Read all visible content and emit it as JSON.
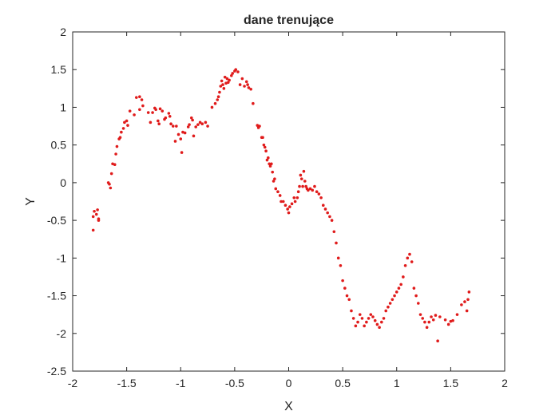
{
  "chart_data": {
    "type": "scatter",
    "title": "dane trenujące",
    "xlabel": "X",
    "ylabel": "Y",
    "xlim": [
      -2,
      2
    ],
    "ylim": [
      -2.5,
      2
    ],
    "xticks": [
      "-2",
      "-1.5",
      "-1",
      "-0.5",
      "0",
      "0.5",
      "1",
      "1.5",
      "2"
    ],
    "yticks": [
      "-2.5",
      "-2",
      "-1.5",
      "-1",
      "-0.5",
      "0",
      "0.5",
      "1",
      "1.5",
      "2"
    ],
    "grid": false,
    "marker_color": "#e01b1b",
    "points": [
      [
        -1.81,
        -0.63
      ],
      [
        -1.81,
        -0.45
      ],
      [
        -1.8,
        -0.38
      ],
      [
        -1.78,
        -0.42
      ],
      [
        -1.77,
        -0.36
      ],
      [
        -1.76,
        -0.5
      ],
      [
        -1.76,
        -0.48
      ],
      [
        -1.67,
        0.0
      ],
      [
        -1.66,
        -0.02
      ],
      [
        -1.65,
        -0.07
      ],
      [
        -1.64,
        0.12
      ],
      [
        -1.63,
        0.25
      ],
      [
        -1.61,
        0.24
      ],
      [
        -1.6,
        0.38
      ],
      [
        -1.59,
        0.48
      ],
      [
        -1.57,
        0.58
      ],
      [
        -1.56,
        0.6
      ],
      [
        -1.55,
        0.67
      ],
      [
        -1.53,
        0.72
      ],
      [
        -1.52,
        0.8
      ],
      [
        -1.5,
        0.82
      ],
      [
        -1.49,
        0.76
      ],
      [
        -1.47,
        0.95
      ],
      [
        -1.43,
        0.9
      ],
      [
        -1.41,
        1.13
      ],
      [
        -1.38,
        1.14
      ],
      [
        -1.38,
        0.97
      ],
      [
        -1.36,
        1.1
      ],
      [
        -1.35,
        1.02
      ],
      [
        -1.3,
        0.93
      ],
      [
        -1.28,
        0.8
      ],
      [
        -1.26,
        0.93
      ],
      [
        -1.24,
        0.99
      ],
      [
        -1.23,
        0.97
      ],
      [
        -1.21,
        0.82
      ],
      [
        -1.2,
        0.78
      ],
      [
        -1.19,
        0.98
      ],
      [
        -1.17,
        0.95
      ],
      [
        -1.15,
        0.84
      ],
      [
        -1.14,
        0.86
      ],
      [
        -1.11,
        0.92
      ],
      [
        -1.1,
        0.88
      ],
      [
        -1.09,
        0.78
      ],
      [
        -1.07,
        0.75
      ],
      [
        -1.05,
        0.55
      ],
      [
        -1.04,
        0.75
      ],
      [
        -1.02,
        0.64
      ],
      [
        -1.0,
        0.58
      ],
      [
        -0.99,
        0.4
      ],
      [
        -0.98,
        0.67
      ],
      [
        -0.96,
        0.66
      ],
      [
        -0.93,
        0.74
      ],
      [
        -0.92,
        0.77
      ],
      [
        -0.9,
        0.86
      ],
      [
        -0.89,
        0.83
      ],
      [
        -0.88,
        0.62
      ],
      [
        -0.86,
        0.74
      ],
      [
        -0.84,
        0.77
      ],
      [
        -0.82,
        0.8
      ],
      [
        -0.8,
        0.78
      ],
      [
        -0.77,
        0.8
      ],
      [
        -0.75,
        0.75
      ],
      [
        -0.71,
        1.0
      ],
      [
        -0.68,
        1.05
      ],
      [
        -0.66,
        1.1
      ],
      [
        -0.65,
        1.14
      ],
      [
        -0.64,
        1.2
      ],
      [
        -0.63,
        1.28
      ],
      [
        -0.62,
        1.35
      ],
      [
        -0.61,
        1.3
      ],
      [
        -0.6,
        1.25
      ],
      [
        -0.59,
        1.4
      ],
      [
        -0.58,
        1.32
      ],
      [
        -0.57,
        1.38
      ],
      [
        -0.56,
        1.33
      ],
      [
        -0.55,
        1.36
      ],
      [
        -0.53,
        1.42
      ],
      [
        -0.52,
        1.45
      ],
      [
        -0.5,
        1.48
      ],
      [
        -0.49,
        1.5
      ],
      [
        -0.47,
        1.47
      ],
      [
        -0.45,
        1.3
      ],
      [
        -0.43,
        1.38
      ],
      [
        -0.41,
        1.28
      ],
      [
        -0.39,
        1.34
      ],
      [
        -0.38,
        1.3
      ],
      [
        -0.37,
        1.26
      ],
      [
        -0.35,
        1.24
      ],
      [
        -0.33,
        1.05
      ],
      [
        -0.29,
        0.76
      ],
      [
        -0.28,
        0.73
      ],
      [
        -0.27,
        0.75
      ],
      [
        -0.25,
        0.6
      ],
      [
        -0.24,
        0.6
      ],
      [
        -0.23,
        0.5
      ],
      [
        -0.22,
        0.47
      ],
      [
        -0.21,
        0.42
      ],
      [
        -0.2,
        0.3
      ],
      [
        -0.19,
        0.33
      ],
      [
        -0.18,
        0.25
      ],
      [
        -0.17,
        0.22
      ],
      [
        -0.16,
        0.25
      ],
      [
        -0.15,
        0.14
      ],
      [
        -0.14,
        0.02
      ],
      [
        -0.13,
        0.05
      ],
      [
        -0.12,
        -0.08
      ],
      [
        -0.1,
        -0.12
      ],
      [
        -0.08,
        -0.17
      ],
      [
        -0.07,
        -0.25
      ],
      [
        -0.05,
        -0.25
      ],
      [
        -0.03,
        -0.3
      ],
      [
        -0.01,
        -0.35
      ],
      [
        0.0,
        -0.4
      ],
      [
        0.01,
        -0.32
      ],
      [
        0.03,
        -0.28
      ],
      [
        0.05,
        -0.2
      ],
      [
        0.06,
        -0.25
      ],
      [
        0.08,
        -0.2
      ],
      [
        0.09,
        -0.12
      ],
      [
        0.1,
        -0.05
      ],
      [
        0.11,
        0.1
      ],
      [
        0.12,
        0.05
      ],
      [
        0.13,
        -0.05
      ],
      [
        0.14,
        0.15
      ],
      [
        0.15,
        0.02
      ],
      [
        0.16,
        -0.05
      ],
      [
        0.17,
        -0.08
      ],
      [
        0.18,
        -0.1
      ],
      [
        0.2,
        -0.08
      ],
      [
        0.22,
        -0.1
      ],
      [
        0.24,
        -0.05
      ],
      [
        0.26,
        -0.12
      ],
      [
        0.28,
        -0.15
      ],
      [
        0.3,
        -0.2
      ],
      [
        0.32,
        -0.3
      ],
      [
        0.34,
        -0.35
      ],
      [
        0.36,
        -0.4
      ],
      [
        0.38,
        -0.45
      ],
      [
        0.4,
        -0.5
      ],
      [
        0.42,
        -0.65
      ],
      [
        0.44,
        -0.8
      ],
      [
        0.46,
        -1.0
      ],
      [
        0.48,
        -1.1
      ],
      [
        0.5,
        -1.3
      ],
      [
        0.52,
        -1.4
      ],
      [
        0.54,
        -1.5
      ],
      [
        0.56,
        -1.55
      ],
      [
        0.58,
        -1.7
      ],
      [
        0.6,
        -1.8
      ],
      [
        0.62,
        -1.9
      ],
      [
        0.64,
        -1.85
      ],
      [
        0.66,
        -1.75
      ],
      [
        0.68,
        -1.8
      ],
      [
        0.7,
        -1.9
      ],
      [
        0.72,
        -1.85
      ],
      [
        0.74,
        -1.8
      ],
      [
        0.76,
        -1.75
      ],
      [
        0.78,
        -1.78
      ],
      [
        0.8,
        -1.83
      ],
      [
        0.82,
        -1.88
      ],
      [
        0.84,
        -1.92
      ],
      [
        0.86,
        -1.85
      ],
      [
        0.88,
        -1.8
      ],
      [
        0.9,
        -1.7
      ],
      [
        0.92,
        -1.65
      ],
      [
        0.94,
        -1.6
      ],
      [
        0.96,
        -1.55
      ],
      [
        0.98,
        -1.5
      ],
      [
        1.0,
        -1.45
      ],
      [
        1.02,
        -1.4
      ],
      [
        1.04,
        -1.35
      ],
      [
        1.06,
        -1.25
      ],
      [
        1.08,
        -1.1
      ],
      [
        1.1,
        -1.0
      ],
      [
        1.12,
        -0.95
      ],
      [
        1.14,
        -1.05
      ],
      [
        1.16,
        -1.4
      ],
      [
        1.18,
        -1.5
      ],
      [
        1.2,
        -1.6
      ],
      [
        1.22,
        -1.75
      ],
      [
        1.24,
        -1.8
      ],
      [
        1.26,
        -1.85
      ],
      [
        1.28,
        -1.92
      ],
      [
        1.3,
        -1.85
      ],
      [
        1.32,
        -1.78
      ],
      [
        1.34,
        -1.82
      ],
      [
        1.36,
        -1.76
      ],
      [
        1.38,
        -2.1
      ],
      [
        1.4,
        -1.78
      ],
      [
        1.45,
        -1.82
      ],
      [
        1.48,
        -1.88
      ],
      [
        1.5,
        -1.84
      ],
      [
        1.52,
        -1.83
      ],
      [
        1.56,
        -1.75
      ],
      [
        1.6,
        -1.62
      ],
      [
        1.63,
        -1.58
      ],
      [
        1.65,
        -1.7
      ],
      [
        1.66,
        -1.55
      ],
      [
        1.67,
        -1.45
      ]
    ]
  }
}
